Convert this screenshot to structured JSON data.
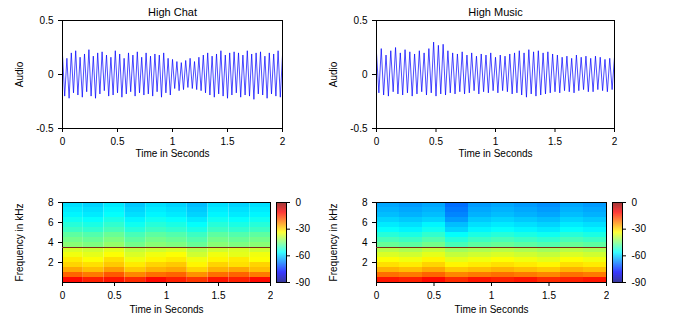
{
  "chart_data": [
    {
      "type": "line",
      "title": "High Chat",
      "x_label": "Time in Seconds",
      "y_label": "Audio",
      "xlim": [
        0,
        2
      ],
      "ylim": [
        -0.5,
        0.5
      ],
      "xticks": [
        0,
        0.5,
        1,
        1.5,
        2
      ],
      "yticks": [
        -0.5,
        0,
        0.5
      ],
      "color": "#0000ff",
      "x": [
        0,
        0.02,
        0.04,
        0.06,
        0.08,
        0.1,
        0.12,
        0.14,
        0.16,
        0.18,
        0.2,
        0.22,
        0.24,
        0.26,
        0.28,
        0.3,
        0.32,
        0.34,
        0.36,
        0.38,
        0.4,
        0.42,
        0.44,
        0.46,
        0.48,
        0.5,
        0.52,
        0.54,
        0.56,
        0.58,
        0.6,
        0.62,
        0.64,
        0.66,
        0.68,
        0.7,
        0.72,
        0.74,
        0.76,
        0.78,
        0.8,
        0.82,
        0.84,
        0.86,
        0.88,
        0.9,
        0.92,
        0.94,
        0.96,
        0.98,
        1,
        1.02,
        1.04,
        1.06,
        1.08,
        1.1,
        1.12,
        1.14,
        1.16,
        1.18,
        1.2,
        1.22,
        1.24,
        1.26,
        1.28,
        1.3,
        1.32,
        1.34,
        1.36,
        1.38,
        1.4,
        1.42,
        1.44,
        1.46,
        1.48,
        1.5,
        1.52,
        1.54,
        1.56,
        1.58,
        1.6,
        1.62,
        1.64,
        1.66,
        1.68,
        1.7,
        1.72,
        1.74,
        1.76,
        1.78,
        1.8,
        1.82,
        1.84,
        1.86,
        1.88,
        1.9,
        1.92,
        1.94,
        1.96,
        1.98,
        2
      ],
      "values": [
        0.18,
        -0.2,
        0.15,
        -0.22,
        0.2,
        -0.17,
        0.22,
        -0.19,
        0.16,
        -0.21,
        0.19,
        -0.16,
        0.23,
        -0.2,
        0.17,
        -0.22,
        0.2,
        -0.18,
        0.21,
        -0.15,
        0.18,
        -0.2,
        0.16,
        -0.19,
        0.22,
        -0.17,
        0.19,
        -0.21,
        0.15,
        -0.18,
        0.2,
        -0.16,
        0.18,
        -0.2,
        0.21,
        -0.17,
        0.16,
        -0.19,
        0.2,
        -0.18,
        0.17,
        -0.2,
        0.19,
        -0.16,
        0.18,
        -0.21,
        0.2,
        -0.17,
        0.15,
        -0.19,
        0.14,
        -0.13,
        0.12,
        -0.15,
        0.11,
        -0.14,
        0.13,
        -0.12,
        0.15,
        -0.13,
        0.12,
        -0.14,
        0.16,
        -0.15,
        0.18,
        -0.17,
        0.2,
        -0.19,
        0.17,
        -0.21,
        0.19,
        -0.18,
        0.22,
        -0.2,
        0.18,
        -0.22,
        0.2,
        -0.19,
        0.21,
        -0.17,
        0.2,
        -0.21,
        0.18,
        -0.19,
        0.22,
        -0.2,
        0.19,
        -0.23,
        0.2,
        -0.18,
        0.21,
        -0.19,
        0.17,
        -0.22,
        0.2,
        -0.18,
        0.19,
        -0.2,
        0.22,
        -0.21,
        0.18
      ]
    },
    {
      "type": "line",
      "title": "High Music",
      "x_label": "Time in Seconds",
      "y_label": "Audio",
      "xlim": [
        0,
        2
      ],
      "ylim": [
        -0.5,
        0.5
      ],
      "xticks": [
        0,
        0.5,
        1,
        1.5,
        2
      ],
      "yticks": [
        -0.5,
        0,
        0.5
      ],
      "color": "#0000ff",
      "x": [
        0,
        0.02,
        0.04,
        0.06,
        0.08,
        0.1,
        0.12,
        0.14,
        0.16,
        0.18,
        0.2,
        0.22,
        0.24,
        0.26,
        0.28,
        0.3,
        0.32,
        0.34,
        0.36,
        0.38,
        0.4,
        0.42,
        0.44,
        0.46,
        0.48,
        0.5,
        0.52,
        0.54,
        0.56,
        0.58,
        0.6,
        0.62,
        0.64,
        0.66,
        0.68,
        0.7,
        0.72,
        0.74,
        0.76,
        0.78,
        0.8,
        0.82,
        0.84,
        0.86,
        0.88,
        0.9,
        0.92,
        0.94,
        0.96,
        0.98,
        1,
        1.02,
        1.04,
        1.06,
        1.08,
        1.1,
        1.12,
        1.14,
        1.16,
        1.18,
        1.2,
        1.22,
        1.24,
        1.26,
        1.28,
        1.3,
        1.32,
        1.34,
        1.36,
        1.38,
        1.4,
        1.42,
        1.44,
        1.46,
        1.48,
        1.5,
        1.52,
        1.54,
        1.56,
        1.58,
        1.6,
        1.62,
        1.64,
        1.66,
        1.68,
        1.7,
        1.72,
        1.74,
        1.76,
        1.78,
        1.8,
        1.82,
        1.84,
        1.86,
        1.88,
        1.9,
        1.92,
        1.94,
        1.96,
        1.98,
        2
      ],
      "values": [
        0.2,
        -0.17,
        0.24,
        -0.19,
        0.18,
        -0.2,
        0.22,
        -0.16,
        0.25,
        -0.18,
        0.2,
        -0.19,
        0.23,
        -0.17,
        0.21,
        -0.2,
        0.19,
        -0.18,
        0.22,
        -0.16,
        0.2,
        -0.19,
        0.24,
        -0.17,
        0.3,
        -0.2,
        0.27,
        -0.18,
        0.28,
        -0.19,
        0.22,
        -0.17,
        0.2,
        -0.18,
        0.19,
        -0.16,
        0.21,
        -0.18,
        0.18,
        -0.17,
        0.2,
        -0.15,
        0.17,
        -0.18,
        0.19,
        -0.16,
        0.18,
        -0.17,
        0.2,
        -0.15,
        0.16,
        -0.17,
        0.18,
        -0.15,
        0.17,
        -0.16,
        0.19,
        -0.18,
        0.2,
        -0.17,
        0.22,
        -0.19,
        0.2,
        -0.21,
        0.23,
        -0.18,
        0.21,
        -0.2,
        0.22,
        -0.19,
        0.2,
        -0.18,
        0.21,
        -0.17,
        0.19,
        -0.16,
        0.18,
        -0.17,
        0.16,
        -0.15,
        0.17,
        -0.16,
        0.15,
        -0.17,
        0.18,
        -0.15,
        0.16,
        -0.14,
        0.17,
        -0.16,
        0.15,
        -0.16,
        0.17,
        -0.14,
        0.16,
        -0.15,
        0.14,
        -0.16,
        0.15,
        -0.14,
        0.16
      ]
    },
    {
      "type": "heatmap",
      "x_label": "Time in Seconds",
      "y_label": "Frequency in kHz",
      "xlim": [
        0,
        2
      ],
      "ylim": [
        0,
        8
      ],
      "xticks": [
        0,
        0.5,
        1,
        1.5,
        2
      ],
      "yticks": [
        2,
        4,
        6,
        8
      ],
      "time_bins": [
        0,
        0.2,
        0.4,
        0.6,
        0.8,
        1,
        1.2,
        1.4,
        1.6,
        1.8,
        2
      ],
      "freq_bins": [
        0,
        0.5,
        1,
        1.5,
        2,
        2.5,
        3,
        3.5,
        4,
        4.5,
        5,
        5.5,
        6,
        6.5,
        7,
        7.5,
        8
      ],
      "cells": [
        [
          -12,
          -14,
          -13,
          -15,
          -12,
          -14,
          -16,
          -13,
          -14,
          -12
        ],
        [
          -20,
          -22,
          -19,
          -23,
          -21,
          -20,
          -24,
          -21,
          -20,
          -22
        ],
        [
          -26,
          -28,
          -25,
          -29,
          -27,
          -26,
          -30,
          -27,
          -26,
          -28
        ],
        [
          -30,
          -31,
          -29,
          -32,
          -30,
          -29,
          -33,
          -30,
          -31,
          -30
        ],
        [
          -32,
          -34,
          -31,
          -35,
          -33,
          -32,
          -35,
          -33,
          -32,
          -34
        ],
        [
          -35,
          -36,
          -34,
          -37,
          -35,
          -34,
          -38,
          -35,
          -36,
          -35
        ],
        [
          -37,
          -38,
          -36,
          -39,
          -38,
          -37,
          -40,
          -38,
          -37,
          -38
        ],
        [
          -44,
          -45,
          -43,
          -46,
          -44,
          -45,
          -47,
          -44,
          -45,
          -44
        ],
        [
          -46,
          -47,
          -45,
          -48,
          -46,
          -47,
          -49,
          -46,
          -47,
          -46
        ],
        [
          -48,
          -49,
          -47,
          -50,
          -48,
          -49,
          -51,
          -48,
          -49,
          -48
        ],
        [
          -51,
          -52,
          -50,
          -53,
          -51,
          -52,
          -54,
          -51,
          -52,
          -51
        ],
        [
          -53,
          -54,
          -52,
          -55,
          -53,
          -54,
          -56,
          -53,
          -54,
          -53
        ],
        [
          -55,
          -56,
          -54,
          -57,
          -55,
          -56,
          -58,
          -55,
          -56,
          -55
        ],
        [
          -57,
          -58,
          -56,
          -59,
          -57,
          -58,
          -60,
          -57,
          -58,
          -57
        ],
        [
          -58,
          -59,
          -57,
          -60,
          -58,
          -59,
          -61,
          -58,
          -59,
          -58
        ],
        [
          -59,
          -60,
          -58,
          -61,
          -59,
          -60,
          -62,
          -59,
          -60,
          -59
        ]
      ],
      "colorbar": {
        "range": [
          -90,
          0
        ],
        "ticks": [
          0,
          -30,
          -60,
          -90
        ]
      },
      "reference_line": 3.5
    },
    {
      "type": "heatmap",
      "x_label": "Time in Seconds",
      "y_label": "Frequency in kHz",
      "xlim": [
        0,
        2
      ],
      "ylim": [
        0,
        8
      ],
      "xticks": [
        0,
        0.5,
        1,
        1.5,
        2
      ],
      "yticks": [
        2,
        4,
        6,
        8
      ],
      "time_bins": [
        0,
        0.2,
        0.4,
        0.6,
        0.8,
        1,
        1.2,
        1.4,
        1.6,
        1.8,
        2
      ],
      "freq_bins": [
        0,
        0.5,
        1,
        1.5,
        2,
        2.5,
        3,
        3.5,
        4,
        4.5,
        5,
        5.5,
        6,
        6.5,
        7,
        7.5,
        8
      ],
      "cells": [
        [
          -13,
          -14,
          -12,
          -15,
          -13,
          -14,
          -13,
          -15,
          -14,
          -13
        ],
        [
          -21,
          -22,
          -20,
          -23,
          -22,
          -21,
          -22,
          -23,
          -21,
          -22
        ],
        [
          -27,
          -28,
          -26,
          -29,
          -28,
          -27,
          -28,
          -29,
          -27,
          -28
        ],
        [
          -31,
          -32,
          -30,
          -33,
          -32,
          -31,
          -32,
          -33,
          -31,
          -32
        ],
        [
          -34,
          -35,
          -33,
          -36,
          -35,
          -34,
          -35,
          -36,
          -34,
          -35
        ],
        [
          -37,
          -38,
          -36,
          -39,
          -38,
          -37,
          -38,
          -39,
          -37,
          -38
        ],
        [
          -40,
          -41,
          -39,
          -42,
          -41,
          -40,
          -41,
          -42,
          -40,
          -41
        ],
        [
          -47,
          -48,
          -46,
          -50,
          -48,
          -47,
          -48,
          -49,
          -47,
          -48
        ],
        [
          -50,
          -51,
          -49,
          -53,
          -51,
          -50,
          -51,
          -52,
          -50,
          -51
        ],
        [
          -53,
          -54,
          -52,
          -56,
          -54,
          -53,
          -54,
          -55,
          -53,
          -54
        ],
        [
          -56,
          -57,
          -55,
          -60,
          -57,
          -56,
          -57,
          -58,
          -56,
          -57
        ],
        [
          -58,
          -59,
          -57,
          -62,
          -59,
          -58,
          -59,
          -60,
          -58,
          -59
        ],
        [
          -60,
          -61,
          -60,
          -65,
          -61,
          -60,
          -61,
          -62,
          -60,
          -61
        ],
        [
          -62,
          -63,
          -62,
          -67,
          -63,
          -62,
          -63,
          -64,
          -62,
          -63
        ],
        [
          -63,
          -64,
          -63,
          -68,
          -64,
          -63,
          -64,
          -65,
          -63,
          -64
        ],
        [
          -64,
          -65,
          -64,
          -69,
          -65,
          -64,
          -65,
          -66,
          -64,
          -65
        ]
      ],
      "colorbar": {
        "range": [
          -90,
          0
        ],
        "ticks": [
          0,
          -30,
          -60,
          -90
        ]
      },
      "reference_line": 3.5
    }
  ]
}
